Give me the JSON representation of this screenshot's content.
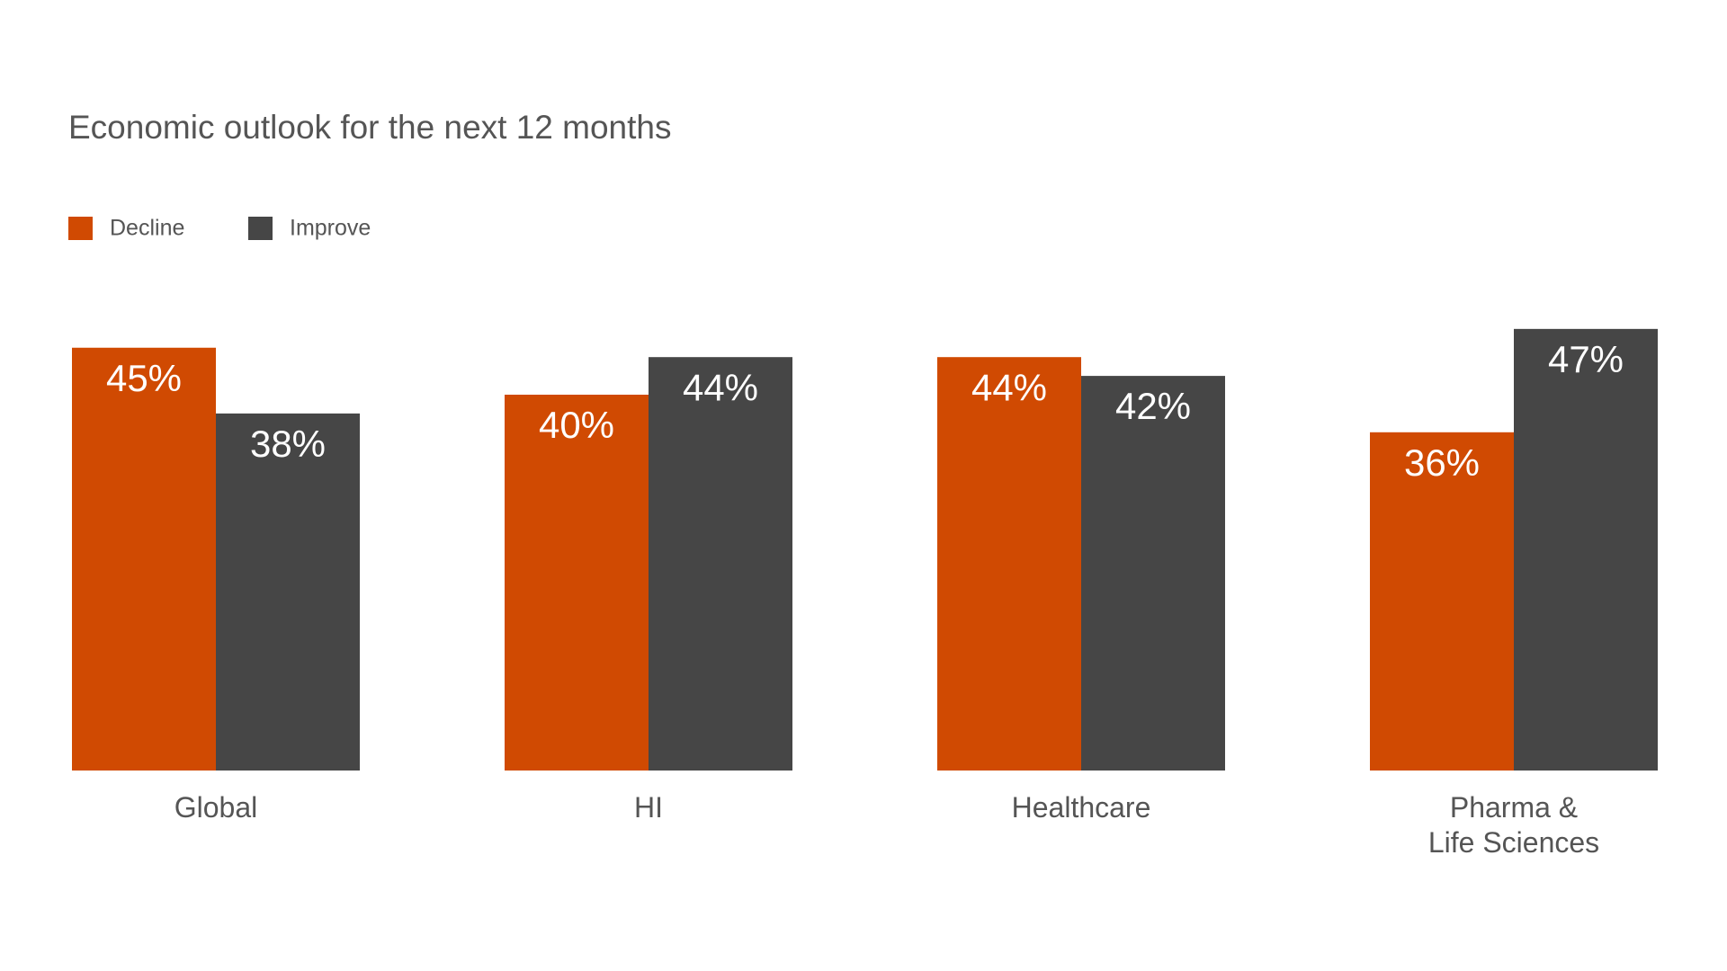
{
  "chart_data": {
    "type": "bar",
    "title": "Economic outlook for the next 12 months",
    "categories": [
      "Global",
      "HI",
      "Healthcare",
      "Pharma &\nLife Sciences"
    ],
    "series": [
      {
        "name": "Decline",
        "color": "#d04a02",
        "values": [
          45,
          40,
          44,
          36
        ],
        "value_labels": [
          "45%",
          "40%",
          "44%",
          "36%"
        ]
      },
      {
        "name": "Improve",
        "color": "#464646",
        "values": [
          38,
          44,
          42,
          47
        ],
        "value_labels": [
          "38%",
          "44%",
          "42%",
          "47%"
        ]
      }
    ],
    "legend": "top-left"
  }
}
